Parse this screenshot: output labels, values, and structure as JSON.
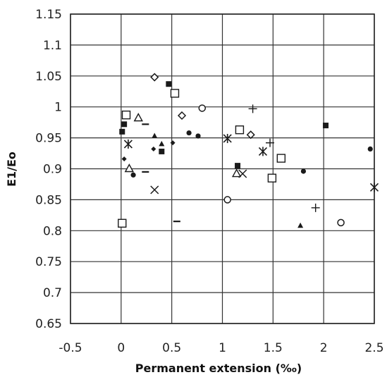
{
  "chart_data": {
    "type": "scatter",
    "xlabel": "Permanent extension (‰)",
    "ylabel": "E1/Eo",
    "xlim": [
      -0.5,
      2.5
    ],
    "ylim": [
      0.65,
      1.15
    ],
    "xticks": [
      "-0.5",
      "0",
      "0.5",
      "1",
      "1.5",
      "2",
      "2.5"
    ],
    "yticks": [
      "0.65",
      "0.7",
      "0.75",
      "0.8",
      "0.85",
      "0.9",
      "0.95",
      "1",
      "1.05",
      "1.1",
      "1.15"
    ],
    "grid": true,
    "legend": "none",
    "series": [
      {
        "marker": "open-diamond",
        "points": [
          [
            0.33,
            1.048
          ],
          [
            0.6,
            0.986
          ],
          [
            1.28,
            0.955
          ]
        ]
      },
      {
        "marker": "filled-square",
        "points": [
          [
            0.47,
            1.037
          ],
          [
            0.03,
            0.972
          ],
          [
            0.01,
            0.96
          ],
          [
            0.4,
            0.928
          ],
          [
            1.15,
            0.905
          ],
          [
            2.02,
            0.97
          ]
        ]
      },
      {
        "marker": "open-square",
        "points": [
          [
            0.53,
            1.022
          ],
          [
            0.05,
            0.987
          ],
          [
            1.17,
            0.963
          ],
          [
            1.58,
            0.917
          ],
          [
            1.49,
            0.885
          ],
          [
            0.01,
            0.812
          ]
        ]
      },
      {
        "marker": "open-circle",
        "points": [
          [
            0.8,
            0.998
          ],
          [
            1.05,
            0.85
          ],
          [
            2.17,
            0.813
          ]
        ]
      },
      {
        "marker": "plus",
        "points": [
          [
            1.3,
            0.997
          ],
          [
            1.47,
            0.942
          ],
          [
            1.92,
            0.837
          ]
        ]
      },
      {
        "marker": "open-triangle",
        "points": [
          [
            0.17,
            0.982
          ],
          [
            0.08,
            0.9
          ],
          [
            1.14,
            0.892
          ]
        ]
      },
      {
        "marker": "dash",
        "points": [
          [
            0.24,
            0.972
          ],
          [
            0.24,
            0.895
          ],
          [
            0.55,
            0.815
          ]
        ]
      },
      {
        "marker": "filled-circle",
        "points": [
          [
            0.67,
            0.958
          ],
          [
            0.76,
            0.953
          ],
          [
            1.8,
            0.896
          ],
          [
            2.46,
            0.932
          ],
          [
            0.12,
            0.89
          ]
        ]
      },
      {
        "marker": "filled-triangle",
        "points": [
          [
            0.33,
            0.953
          ],
          [
            0.4,
            0.94
          ],
          [
            1.77,
            0.808
          ]
        ]
      },
      {
        "marker": "small-filled-diamond",
        "points": [
          [
            0.03,
            0.916
          ],
          [
            0.32,
            0.932
          ],
          [
            0.51,
            0.942
          ]
        ]
      },
      {
        "marker": "x",
        "points": [
          [
            0.33,
            0.866
          ],
          [
            1.2,
            0.892
          ]
        ]
      },
      {
        "marker": "asterisk",
        "points": [
          [
            0.07,
            0.94
          ],
          [
            1.05,
            0.949
          ],
          [
            1.4,
            0.928
          ],
          [
            2.5,
            0.87
          ]
        ]
      }
    ]
  }
}
